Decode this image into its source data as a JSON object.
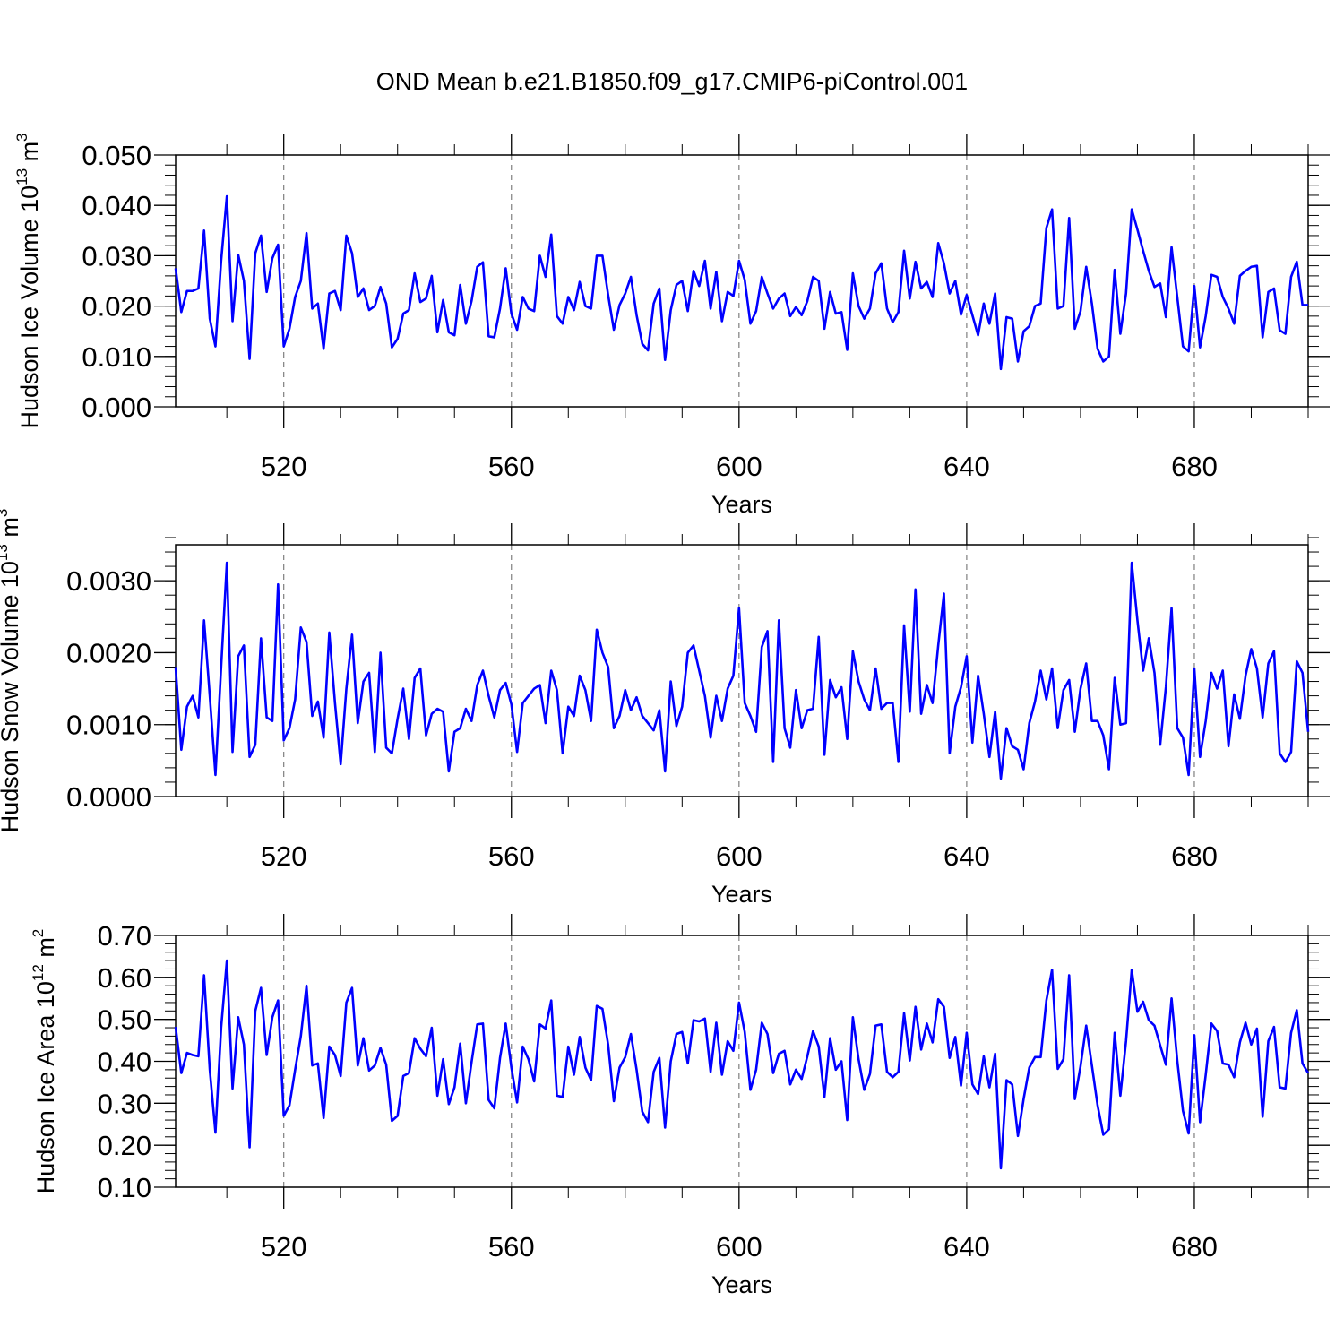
{
  "figure_title": "OND Mean b.e21.B1850.f09_g17.CMIP6-piControl.001",
  "colors": {
    "line": "#0000ff",
    "axis": "#000000",
    "grid": "#7f7f7f"
  },
  "chart_data": [
    {
      "type": "line",
      "xlabel": "Years",
      "ylabel_main": "Hudson Ice Volume 10",
      "ylabel_sup": "13",
      "ylabel_unit": " m",
      "ylabel_unit_sup": "3",
      "xlim": [
        501,
        700
      ],
      "ylim": [
        0.0,
        0.05
      ],
      "yticks": [
        0.0,
        0.01,
        0.02,
        0.03,
        0.04,
        0.05
      ],
      "ytick_labels": [
        "0.000",
        "0.010",
        "0.020",
        "0.030",
        "0.040",
        "0.050"
      ],
      "xticks": [
        520,
        560,
        600,
        640,
        680
      ],
      "xtick_labels": [
        "520",
        "560",
        "600",
        "640",
        "680"
      ],
      "grid": "vertical-dashed",
      "x_start": 501,
      "values": [
        0.0275,
        0.0188,
        0.023,
        0.023,
        0.0235,
        0.035,
        0.0175,
        0.012,
        0.029,
        0.0418,
        0.017,
        0.0302,
        0.025,
        0.0095,
        0.0305,
        0.034,
        0.0228,
        0.0295,
        0.0322,
        0.012,
        0.0155,
        0.0218,
        0.025,
        0.0345,
        0.0195,
        0.0205,
        0.0115,
        0.0225,
        0.023,
        0.0192,
        0.034,
        0.0305,
        0.0218,
        0.0235,
        0.0192,
        0.02,
        0.0238,
        0.0205,
        0.0118,
        0.0135,
        0.0185,
        0.0192,
        0.0265,
        0.0208,
        0.0215,
        0.026,
        0.0148,
        0.0212,
        0.0148,
        0.0142,
        0.0242,
        0.0165,
        0.021,
        0.0278,
        0.0287,
        0.014,
        0.0138,
        0.0195,
        0.0275,
        0.0185,
        0.0153,
        0.0218,
        0.0195,
        0.019,
        0.03,
        0.0258,
        0.0342,
        0.018,
        0.0165,
        0.0218,
        0.0192,
        0.0248,
        0.02,
        0.0195,
        0.03,
        0.03,
        0.0222,
        0.0153,
        0.0202,
        0.0225,
        0.0258,
        0.0182,
        0.0125,
        0.0112,
        0.0205,
        0.0235,
        0.0093,
        0.0192,
        0.0242,
        0.025,
        0.019,
        0.027,
        0.024,
        0.029,
        0.0195,
        0.0268,
        0.017,
        0.0228,
        0.022,
        0.029,
        0.0252,
        0.0165,
        0.019,
        0.0258,
        0.0225,
        0.0195,
        0.0215,
        0.0225,
        0.018,
        0.0198,
        0.0182,
        0.021,
        0.0258,
        0.025,
        0.0155,
        0.0228,
        0.0185,
        0.0188,
        0.0113,
        0.0265,
        0.02,
        0.0175,
        0.0195,
        0.0265,
        0.0285,
        0.0195,
        0.0168,
        0.0188,
        0.031,
        0.0215,
        0.0288,
        0.0235,
        0.0248,
        0.0218,
        0.0325,
        0.0285,
        0.0225,
        0.025,
        0.0183,
        0.0222,
        0.0182,
        0.0142,
        0.0205,
        0.0165,
        0.0225,
        0.0075,
        0.0178,
        0.0175,
        0.009,
        0.015,
        0.016,
        0.02,
        0.0205,
        0.0355,
        0.0392,
        0.0195,
        0.02,
        0.0375,
        0.0155,
        0.019,
        0.0278,
        0.0205,
        0.0115,
        0.009,
        0.01,
        0.0272,
        0.0145,
        0.0225,
        0.0392,
        0.0352,
        0.031,
        0.027,
        0.0238,
        0.0245,
        0.0178,
        0.0317,
        0.0218,
        0.012,
        0.011,
        0.024,
        0.0118,
        0.018,
        0.0262,
        0.0258,
        0.0218,
        0.0195,
        0.0165,
        0.026,
        0.027,
        0.0278,
        0.028,
        0.0138,
        0.0228,
        0.0235,
        0.0152,
        0.0145,
        0.0258,
        0.0288,
        0.0202,
        0.0202
      ]
    },
    {
      "type": "line",
      "xlabel": "Years",
      "ylabel_main": "Hudson Snow Volume 10",
      "ylabel_sup": "13",
      "ylabel_unit": " m",
      "ylabel_unit_sup": "3",
      "xlim": [
        501,
        700
      ],
      "ylim": [
        0.0,
        0.0035
      ],
      "yticks": [
        0.0,
        0.001,
        0.002,
        0.003
      ],
      "ytick_labels": [
        "0.0000",
        "0.0010",
        "0.0020",
        "0.0030"
      ],
      "xticks": [
        520,
        560,
        600,
        640,
        680
      ],
      "xtick_labels": [
        "520",
        "560",
        "600",
        "640",
        "680"
      ],
      "grid": "vertical-dashed",
      "x_start": 501,
      "values": [
        0.0018,
        0.00065,
        0.00125,
        0.0014,
        0.0011,
        0.00245,
        0.0014,
        0.0003,
        0.0018,
        0.00325,
        0.00062,
        0.00195,
        0.0021,
        0.00055,
        0.00072,
        0.0022,
        0.0011,
        0.00105,
        0.00295,
        0.00078,
        0.00095,
        0.00135,
        0.00235,
        0.00215,
        0.00112,
        0.00132,
        0.00082,
        0.00228,
        0.0013,
        0.00045,
        0.0015,
        0.00225,
        0.00102,
        0.0016,
        0.00172,
        0.00062,
        0.002,
        0.00068,
        0.0006,
        0.00108,
        0.0015,
        0.0008,
        0.00165,
        0.00178,
        0.00085,
        0.00115,
        0.00122,
        0.00118,
        0.00035,
        0.0009,
        0.00095,
        0.00122,
        0.00105,
        0.00155,
        0.00175,
        0.0014,
        0.0011,
        0.00148,
        0.00158,
        0.00128,
        0.00062,
        0.0013,
        0.0014,
        0.0015,
        0.00155,
        0.00102,
        0.00175,
        0.00148,
        0.0006,
        0.00125,
        0.00112,
        0.00168,
        0.00148,
        0.00105,
        0.00232,
        0.002,
        0.0018,
        0.00095,
        0.00112,
        0.00148,
        0.0012,
        0.00138,
        0.00112,
        0.00102,
        0.00092,
        0.0012,
        0.00035,
        0.0016,
        0.00098,
        0.00125,
        0.002,
        0.0021,
        0.00175,
        0.0014,
        0.00082,
        0.0014,
        0.00105,
        0.0015,
        0.00168,
        0.00262,
        0.0013,
        0.00112,
        0.0009,
        0.00208,
        0.0023,
        0.00048,
        0.00245,
        0.00095,
        0.00068,
        0.00148,
        0.00095,
        0.0012,
        0.00122,
        0.00222,
        0.00058,
        0.00162,
        0.00138,
        0.00152,
        0.0008,
        0.00202,
        0.0016,
        0.00135,
        0.0012,
        0.00178,
        0.00122,
        0.0013,
        0.0013,
        0.00048,
        0.00238,
        0.00118,
        0.00288,
        0.00115,
        0.00155,
        0.0013,
        0.0021,
        0.00282,
        0.0006,
        0.00125,
        0.00152,
        0.00195,
        0.00075,
        0.00168,
        0.00115,
        0.00055,
        0.00118,
        0.00025,
        0.00095,
        0.0007,
        0.00065,
        0.00038,
        0.00102,
        0.00132,
        0.00175,
        0.00135,
        0.00178,
        0.00095,
        0.00148,
        0.00162,
        0.0009,
        0.0015,
        0.00185,
        0.00105,
        0.00105,
        0.00085,
        0.00038,
        0.00165,
        0.001,
        0.00102,
        0.00325,
        0.00245,
        0.00175,
        0.0022,
        0.00172,
        0.00072,
        0.00152,
        0.00262,
        0.00095,
        0.00082,
        0.0003,
        0.00178,
        0.00055,
        0.00105,
        0.00172,
        0.0015,
        0.00175,
        0.0007,
        0.00142,
        0.00108,
        0.00168,
        0.00205,
        0.00178,
        0.0011,
        0.00185,
        0.00202,
        0.0006,
        0.00048,
        0.00062,
        0.00188,
        0.00172,
        0.0009
      ]
    },
    {
      "type": "line",
      "xlabel": "Years",
      "ylabel_main": "Hudson Ice Area 10",
      "ylabel_sup": "12",
      "ylabel_unit": " m",
      "ylabel_unit_sup": "2",
      "xlim": [
        501,
        700
      ],
      "ylim": [
        0.1,
        0.7
      ],
      "yticks": [
        0.1,
        0.2,
        0.3,
        0.4,
        0.5,
        0.6,
        0.7
      ],
      "ytick_labels": [
        "0.10",
        "0.20",
        "0.30",
        "0.40",
        "0.50",
        "0.60",
        "0.70"
      ],
      "xticks": [
        520,
        560,
        600,
        640,
        680
      ],
      "xtick_labels": [
        "520",
        "560",
        "600",
        "640",
        "680"
      ],
      "grid": "vertical-dashed",
      "x_start": 501,
      "values": [
        0.482,
        0.372,
        0.42,
        0.415,
        0.412,
        0.605,
        0.38,
        0.23,
        0.48,
        0.64,
        0.335,
        0.505,
        0.44,
        0.195,
        0.52,
        0.575,
        0.415,
        0.505,
        0.545,
        0.27,
        0.295,
        0.38,
        0.46,
        0.58,
        0.39,
        0.395,
        0.265,
        0.435,
        0.415,
        0.365,
        0.54,
        0.575,
        0.39,
        0.455,
        0.378,
        0.39,
        0.432,
        0.392,
        0.258,
        0.27,
        0.365,
        0.372,
        0.455,
        0.43,
        0.412,
        0.48,
        0.318,
        0.405,
        0.298,
        0.338,
        0.442,
        0.3,
        0.398,
        0.488,
        0.49,
        0.308,
        0.288,
        0.408,
        0.49,
        0.385,
        0.302,
        0.435,
        0.405,
        0.352,
        0.488,
        0.478,
        0.545,
        0.318,
        0.315,
        0.435,
        0.368,
        0.458,
        0.385,
        0.355,
        0.532,
        0.525,
        0.44,
        0.305,
        0.385,
        0.41,
        0.465,
        0.38,
        0.28,
        0.255,
        0.375,
        0.408,
        0.242,
        0.4,
        0.465,
        0.47,
        0.395,
        0.498,
        0.495,
        0.502,
        0.375,
        0.492,
        0.368,
        0.448,
        0.425,
        0.54,
        0.47,
        0.332,
        0.38,
        0.492,
        0.465,
        0.372,
        0.418,
        0.425,
        0.345,
        0.38,
        0.358,
        0.412,
        0.472,
        0.435,
        0.315,
        0.455,
        0.38,
        0.4,
        0.26,
        0.505,
        0.405,
        0.332,
        0.37,
        0.485,
        0.488,
        0.375,
        0.362,
        0.375,
        0.515,
        0.402,
        0.53,
        0.428,
        0.49,
        0.445,
        0.548,
        0.53,
        0.408,
        0.458,
        0.342,
        0.468,
        0.345,
        0.322,
        0.412,
        0.338,
        0.418,
        0.145,
        0.355,
        0.345,
        0.222,
        0.31,
        0.385,
        0.41,
        0.41,
        0.545,
        0.618,
        0.382,
        0.405,
        0.605,
        0.31,
        0.388,
        0.485,
        0.39,
        0.295,
        0.225,
        0.238,
        0.468,
        0.318,
        0.448,
        0.618,
        0.518,
        0.542,
        0.498,
        0.485,
        0.438,
        0.392,
        0.55,
        0.402,
        0.282,
        0.228,
        0.462,
        0.255,
        0.368,
        0.49,
        0.472,
        0.395,
        0.392,
        0.362,
        0.445,
        0.492,
        0.44,
        0.478,
        0.268,
        0.448,
        0.482,
        0.338,
        0.335,
        0.468,
        0.522,
        0.395,
        0.372
      ]
    }
  ]
}
